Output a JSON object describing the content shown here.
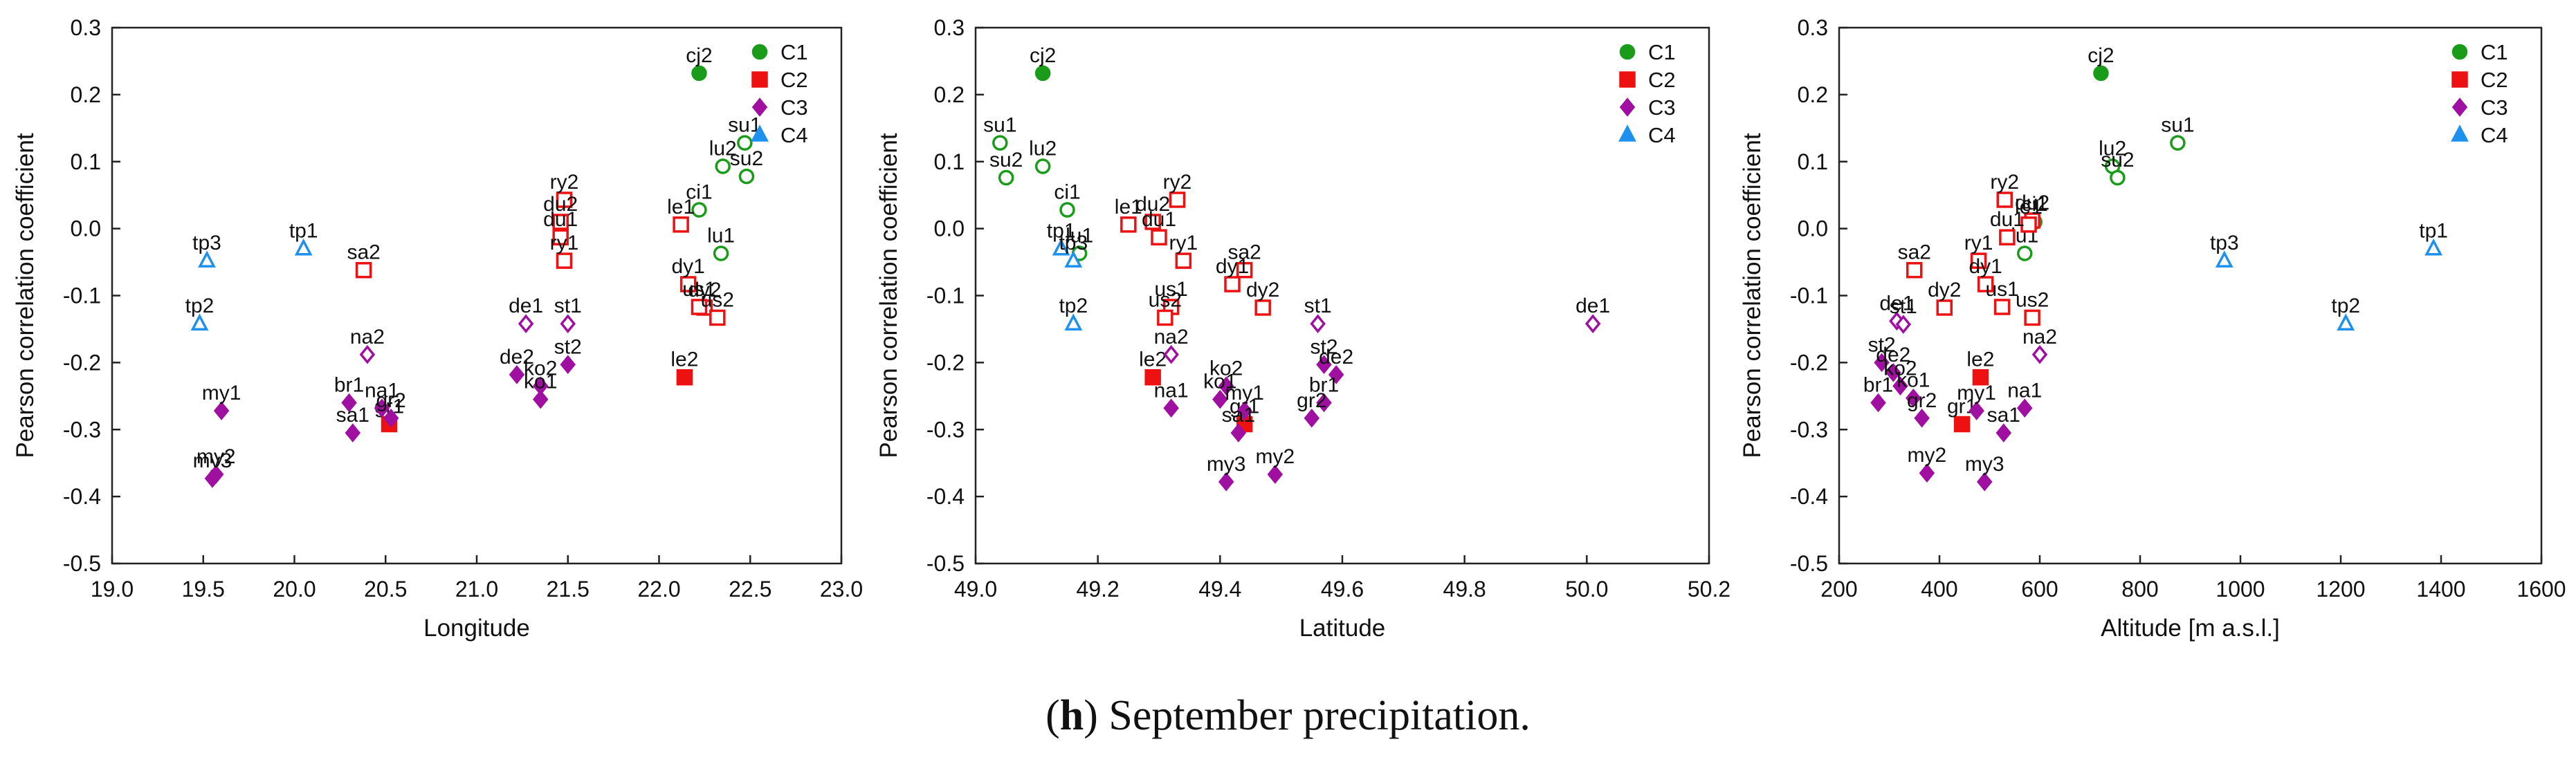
{
  "figure": {
    "caption_letter": "h",
    "caption_text": "September precipitation."
  },
  "chart_data": [
    {
      "type": "scatter",
      "xlabel": "Longitude",
      "ylabel": "Pearson correlation coefficient",
      "xlim": [
        19.0,
        23.0
      ],
      "ylim": [
        -0.5,
        0.3
      ],
      "xticks": [
        "19.0",
        "19.5",
        "20.0",
        "20.5",
        "21.0",
        "21.5",
        "22.0",
        "22.5",
        "23.0"
      ],
      "yticks": [
        "-0.5",
        "-0.4",
        "-0.3",
        "-0.2",
        "-0.1",
        "0.0",
        "0.1",
        "0.2",
        "0.3"
      ],
      "grid": false,
      "legend": {
        "position": "top-right"
      },
      "series": [
        {
          "name": "C1",
          "color": "#1a9b1a",
          "marker": "circle",
          "points": [
            {
              "label": "cj2",
              "x": 22.22,
              "y": 0.232,
              "filled": true
            },
            {
              "label": "su1",
              "x": 22.47,
              "y": 0.128,
              "filled": false
            },
            {
              "label": "lu2",
              "x": 22.35,
              "y": 0.093,
              "filled": false
            },
            {
              "label": "su2",
              "x": 22.48,
              "y": 0.078,
              "filled": false
            },
            {
              "label": "ci1",
              "x": 22.22,
              "y": 0.028,
              "filled": false
            },
            {
              "label": "lu1",
              "x": 22.34,
              "y": -0.037,
              "filled": false
            }
          ]
        },
        {
          "name": "C2",
          "color": "#ee1111",
          "marker": "square",
          "points": [
            {
              "label": "ry2",
              "x": 21.48,
              "y": 0.043,
              "filled": false
            },
            {
              "label": "du2",
              "x": 21.46,
              "y": 0.01,
              "filled": false
            },
            {
              "label": "le1",
              "x": 22.12,
              "y": 0.006,
              "filled": false
            },
            {
              "label": "du1",
              "x": 21.46,
              "y": -0.013,
              "filled": false
            },
            {
              "label": "ry1",
              "x": 21.48,
              "y": -0.048,
              "filled": false
            },
            {
              "label": "sa2",
              "x": 20.38,
              "y": -0.062,
              "filled": false
            },
            {
              "label": "dy1",
              "x": 22.16,
              "y": -0.083,
              "filled": false
            },
            {
              "label": "dy2",
              "x": 22.25,
              "y": -0.118,
              "filled": false
            },
            {
              "label": "us1",
              "x": 22.22,
              "y": -0.117,
              "filled": false
            },
            {
              "label": "us2",
              "x": 22.32,
              "y": -0.133,
              "filled": false
            },
            {
              "label": "le2",
              "x": 22.14,
              "y": -0.222,
              "filled": true
            },
            {
              "label": "gr1",
              "x": 20.52,
              "y": -0.292,
              "filled": true
            }
          ]
        },
        {
          "name": "C3",
          "color": "#a010a0",
          "marker": "diamond",
          "points": [
            {
              "label": "de1",
              "x": 21.27,
              "y": -0.142,
              "filled": false
            },
            {
              "label": "st1",
              "x": 21.5,
              "y": -0.142,
              "filled": false
            },
            {
              "label": "na2",
              "x": 20.4,
              "y": -0.188,
              "filled": false
            },
            {
              "label": "st2",
              "x": 21.5,
              "y": -0.203,
              "filled": true
            },
            {
              "label": "de2",
              "x": 21.22,
              "y": -0.218,
              "filled": true
            },
            {
              "label": "ko2",
              "x": 21.35,
              "y": -0.235,
              "filled": true
            },
            {
              "label": "ko1",
              "x": 21.35,
              "y": -0.255,
              "filled": true
            },
            {
              "label": "br1",
              "x": 20.3,
              "y": -0.26,
              "filled": true
            },
            {
              "label": "na1",
              "x": 20.48,
              "y": -0.268,
              "filled": true
            },
            {
              "label": "my1",
              "x": 19.6,
              "y": -0.272,
              "filled": true
            },
            {
              "label": "gr2",
              "x": 20.53,
              "y": -0.283,
              "filled": true
            },
            {
              "label": "sa1",
              "x": 20.32,
              "y": -0.305,
              "filled": true
            },
            {
              "label": "my3",
              "x": 19.55,
              "y": -0.373,
              "filled": true
            },
            {
              "label": "my2",
              "x": 19.57,
              "y": -0.367,
              "filled": true
            }
          ]
        },
        {
          "name": "C4",
          "color": "#1e90ee",
          "marker": "triangle",
          "points": [
            {
              "label": "tp1",
              "x": 20.05,
              "y": -0.03,
              "filled": false
            },
            {
              "label": "tp3",
              "x": 19.52,
              "y": -0.048,
              "filled": false
            },
            {
              "label": "tp2",
              "x": 19.48,
              "y": -0.142,
              "filled": false
            }
          ]
        }
      ]
    },
    {
      "type": "scatter",
      "xlabel": "Latitude",
      "ylabel": "Pearson correlation coefficient",
      "xlim": [
        49.0,
        50.2
      ],
      "ylim": [
        -0.5,
        0.3
      ],
      "xticks": [
        "49.0",
        "49.2",
        "49.4",
        "49.6",
        "49.8",
        "50.0",
        "50.2"
      ],
      "yticks": [
        "-0.5",
        "-0.4",
        "-0.3",
        "-0.2",
        "-0.1",
        "0.0",
        "0.1",
        "0.2",
        "0.3"
      ],
      "grid": false,
      "legend": {
        "position": "top-right"
      },
      "series": [
        {
          "name": "C1",
          "color": "#1a9b1a",
          "marker": "circle",
          "points": [
            {
              "label": "cj2",
              "x": 49.11,
              "y": 0.232,
              "filled": true
            },
            {
              "label": "su1",
              "x": 49.04,
              "y": 0.128,
              "filled": false
            },
            {
              "label": "lu2",
              "x": 49.11,
              "y": 0.093,
              "filled": false
            },
            {
              "label": "su2",
              "x": 49.05,
              "y": 0.076,
              "filled": false
            },
            {
              "label": "ci1",
              "x": 49.15,
              "y": 0.028,
              "filled": false
            },
            {
              "label": "lu1",
              "x": 49.17,
              "y": -0.037,
              "filled": false
            }
          ]
        },
        {
          "name": "C2",
          "color": "#ee1111",
          "marker": "square",
          "points": [
            {
              "label": "le1",
              "x": 49.25,
              "y": 0.006,
              "filled": false
            },
            {
              "label": "du2",
              "x": 49.29,
              "y": 0.01,
              "filled": false
            },
            {
              "label": "ry2",
              "x": 49.33,
              "y": 0.043,
              "filled": false
            },
            {
              "label": "du1",
              "x": 49.3,
              "y": -0.013,
              "filled": false
            },
            {
              "label": "ry1",
              "x": 49.34,
              "y": -0.048,
              "filled": false
            },
            {
              "label": "sa2",
              "x": 49.44,
              "y": -0.062,
              "filled": false
            },
            {
              "label": "dy1",
              "x": 49.42,
              "y": -0.083,
              "filled": false
            },
            {
              "label": "dy2",
              "x": 49.47,
              "y": -0.118,
              "filled": false
            },
            {
              "label": "us1",
              "x": 49.32,
              "y": -0.117,
              "filled": false
            },
            {
              "label": "us2",
              "x": 49.31,
              "y": -0.133,
              "filled": false
            },
            {
              "label": "le2",
              "x": 49.29,
              "y": -0.222,
              "filled": true
            },
            {
              "label": "gr1",
              "x": 49.44,
              "y": -0.292,
              "filled": true
            }
          ]
        },
        {
          "name": "C3",
          "color": "#a010a0",
          "marker": "diamond",
          "points": [
            {
              "label": "de1",
              "x": 50.01,
              "y": -0.142,
              "filled": false
            },
            {
              "label": "st1",
              "x": 49.56,
              "y": -0.142,
              "filled": false
            },
            {
              "label": "na2",
              "x": 49.32,
              "y": -0.188,
              "filled": false
            },
            {
              "label": "st2",
              "x": 49.57,
              "y": -0.203,
              "filled": true
            },
            {
              "label": "de2",
              "x": 49.59,
              "y": -0.218,
              "filled": true
            },
            {
              "label": "ko2",
              "x": 49.41,
              "y": -0.235,
              "filled": true
            },
            {
              "label": "ko1",
              "x": 49.4,
              "y": -0.255,
              "filled": true
            },
            {
              "label": "br1",
              "x": 49.57,
              "y": -0.26,
              "filled": true
            },
            {
              "label": "na1",
              "x": 49.32,
              "y": -0.268,
              "filled": true
            },
            {
              "label": "my1",
              "x": 49.44,
              "y": -0.272,
              "filled": true
            },
            {
              "label": "gr2",
              "x": 49.55,
              "y": -0.283,
              "filled": true
            },
            {
              "label": "sa1",
              "x": 49.43,
              "y": -0.305,
              "filled": true
            },
            {
              "label": "my3",
              "x": 49.41,
              "y": -0.378,
              "filled": true
            },
            {
              "label": "my2",
              "x": 49.49,
              "y": -0.367,
              "filled": true
            }
          ]
        },
        {
          "name": "C4",
          "color": "#1e90ee",
          "marker": "triangle",
          "points": [
            {
              "label": "tp1",
              "x": 49.14,
              "y": -0.03,
              "filled": false
            },
            {
              "label": "tp3",
              "x": 49.16,
              "y": -0.048,
              "filled": false
            },
            {
              "label": "tp2",
              "x": 49.16,
              "y": -0.142,
              "filled": false
            }
          ]
        }
      ]
    },
    {
      "type": "scatter",
      "xlabel": "Altitude [m a.s.l.]",
      "ylabel": "Pearson correlation coefficient",
      "xlim": [
        200,
        1600
      ],
      "ylim": [
        -0.5,
        0.3
      ],
      "xticks": [
        "200",
        "400",
        "600",
        "800",
        "1000",
        "1200",
        "1400",
        "1600"
      ],
      "yticks": [
        "-0.5",
        "-0.4",
        "-0.3",
        "-0.2",
        "-0.1",
        "0.0",
        "0.1",
        "0.2",
        "0.3"
      ],
      "grid": false,
      "legend": {
        "position": "top-right"
      },
      "series": [
        {
          "name": "C1",
          "color": "#1a9b1a",
          "marker": "circle",
          "points": [
            {
              "label": "cj2",
              "x": 722,
              "y": 0.232,
              "filled": true
            },
            {
              "label": "su1",
              "x": 875,
              "y": 0.128,
              "filled": false
            },
            {
              "label": "lu2",
              "x": 745,
              "y": 0.093,
              "filled": false
            },
            {
              "label": "su2",
              "x": 755,
              "y": 0.076,
              "filled": false
            },
            {
              "label": "ci1",
              "x": 590,
              "y": 0.01,
              "filled": false
            },
            {
              "label": "lu1",
              "x": 570,
              "y": -0.037,
              "filled": false
            }
          ]
        },
        {
          "name": "C2",
          "color": "#ee1111",
          "marker": "square",
          "points": [
            {
              "label": "ry2",
              "x": 530,
              "y": 0.043,
              "filled": false
            },
            {
              "label": "du2",
              "x": 585,
              "y": 0.012,
              "filled": false
            },
            {
              "label": "le1",
              "x": 578,
              "y": 0.006,
              "filled": false
            },
            {
              "label": "du1",
              "x": 535,
              "y": -0.013,
              "filled": false
            },
            {
              "label": "ry1",
              "x": 478,
              "y": -0.048,
              "filled": false
            },
            {
              "label": "sa2",
              "x": 350,
              "y": -0.062,
              "filled": false
            },
            {
              "label": "dy1",
              "x": 492,
              "y": -0.083,
              "filled": false
            },
            {
              "label": "dy2",
              "x": 410,
              "y": -0.118,
              "filled": false
            },
            {
              "label": "us1",
              "x": 525,
              "y": -0.117,
              "filled": false
            },
            {
              "label": "us2",
              "x": 585,
              "y": -0.133,
              "filled": false
            },
            {
              "label": "le2",
              "x": 482,
              "y": -0.222,
              "filled": true
            },
            {
              "label": "gr1",
              "x": 445,
              "y": -0.292,
              "filled": true
            }
          ]
        },
        {
          "name": "C3",
          "color": "#a010a0",
          "marker": "diamond",
          "points": [
            {
              "label": "de1",
              "x": 315,
              "y": -0.138,
              "filled": false
            },
            {
              "label": "st1",
              "x": 328,
              "y": -0.143,
              "filled": false
            },
            {
              "label": "na2",
              "x": 600,
              "y": -0.188,
              "filled": false
            },
            {
              "label": "st2",
              "x": 285,
              "y": -0.2,
              "filled": true
            },
            {
              "label": "de2",
              "x": 308,
              "y": -0.215,
              "filled": true
            },
            {
              "label": "ko2",
              "x": 322,
              "y": -0.235,
              "filled": true
            },
            {
              "label": "ko1",
              "x": 348,
              "y": -0.253,
              "filled": true
            },
            {
              "label": "br1",
              "x": 278,
              "y": -0.26,
              "filled": true
            },
            {
              "label": "na1",
              "x": 570,
              "y": -0.268,
              "filled": true
            },
            {
              "label": "my1",
              "x": 474,
              "y": -0.272,
              "filled": true
            },
            {
              "label": "gr2",
              "x": 365,
              "y": -0.283,
              "filled": true
            },
            {
              "label": "sa1",
              "x": 528,
              "y": -0.305,
              "filled": true
            },
            {
              "label": "my3",
              "x": 490,
              "y": -0.378,
              "filled": true
            },
            {
              "label": "my2",
              "x": 375,
              "y": -0.365,
              "filled": true
            }
          ]
        },
        {
          "name": "C4",
          "color": "#1e90ee",
          "marker": "triangle",
          "points": [
            {
              "label": "tp1",
              "x": 1385,
              "y": -0.03,
              "filled": false
            },
            {
              "label": "tp3",
              "x": 968,
              "y": -0.048,
              "filled": false
            },
            {
              "label": "tp2",
              "x": 1210,
              "y": -0.142,
              "filled": false
            }
          ]
        }
      ]
    }
  ]
}
